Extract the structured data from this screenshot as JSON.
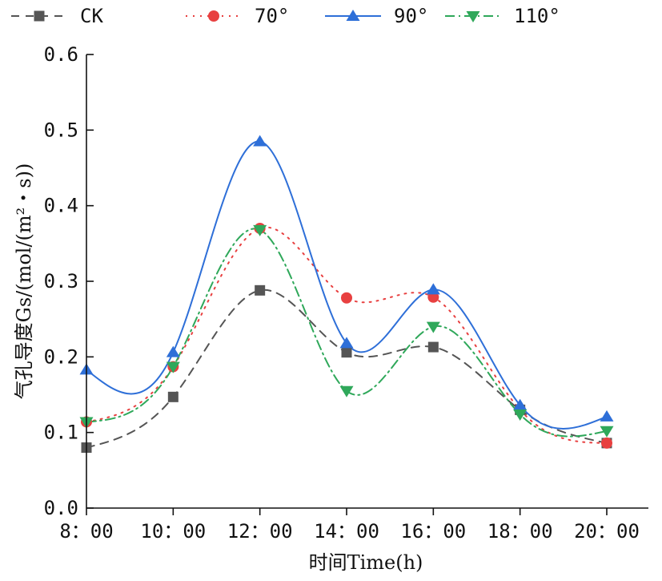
{
  "chart_data": {
    "type": "line",
    "x": [
      "8：00",
      "10：00",
      "12：00",
      "14：00",
      "16：00",
      "18：00",
      "20：00"
    ],
    "xlabel": "时间Time(h)",
    "ylabel": "气孔导度Gs/(mol/(m²・s))",
    "ylim": [
      0.0,
      0.6
    ],
    "yticks": [
      "0.0",
      "0.1",
      "0.2",
      "0.3",
      "0.4",
      "0.5",
      "0.6"
    ],
    "legend_position": "top",
    "grid": false,
    "smooth": true,
    "series": [
      {
        "name": "CK",
        "values": [
          0.08,
          0.147,
          0.288,
          0.206,
          0.213,
          0.13,
          0.086
        ],
        "color": "#555555",
        "marker": "square",
        "dash": "10,8"
      },
      {
        "name": "70°",
        "values": [
          0.114,
          0.187,
          0.37,
          0.278,
          0.279,
          0.13,
          0.086
        ],
        "color": "#e84040",
        "marker": "circle",
        "dash": "2,7"
      },
      {
        "name": "90°",
        "values": [
          0.183,
          0.206,
          0.485,
          0.218,
          0.289,
          0.136,
          0.121
        ],
        "color": "#2e6fd8",
        "marker": "triangle-up",
        "dash": ""
      },
      {
        "name": "110°",
        "values": [
          0.114,
          0.187,
          0.368,
          0.155,
          0.24,
          0.124,
          0.102
        ],
        "color": "#2fa85a",
        "marker": "triangle-down",
        "dash": "12,5,2,5"
      }
    ]
  }
}
